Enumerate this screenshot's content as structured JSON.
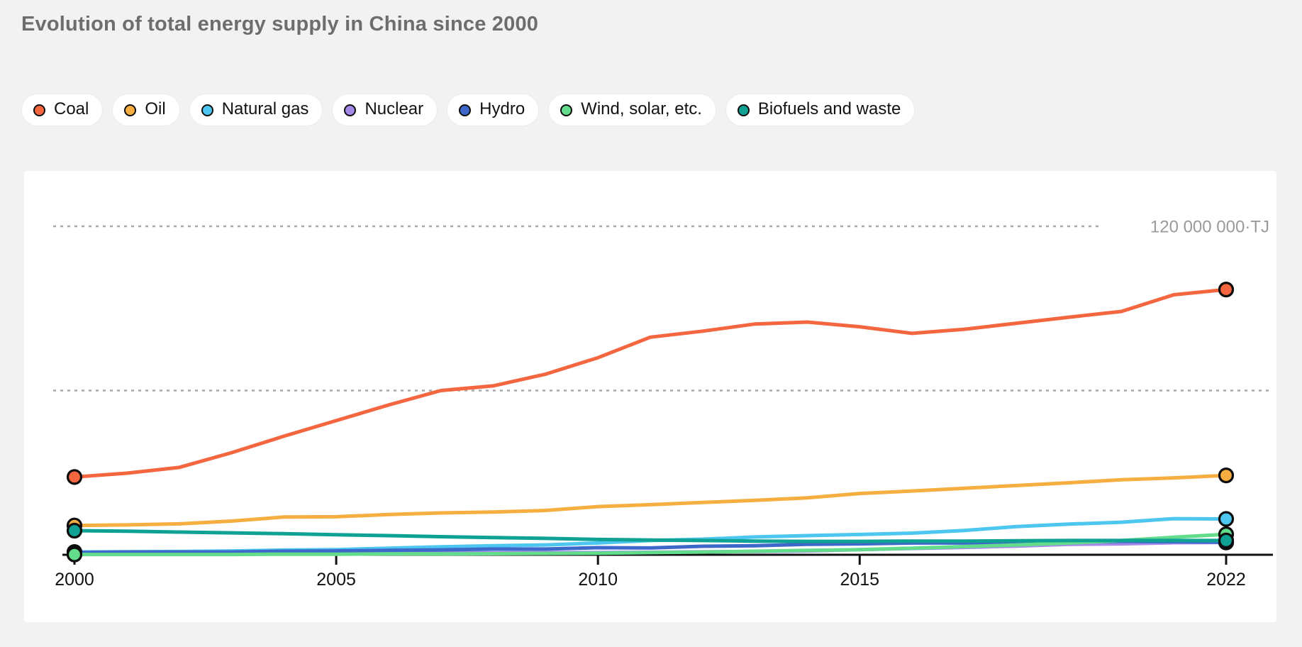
{
  "page": {
    "background_color": "#f2f2f2",
    "card_background_color": "#ffffff"
  },
  "header": {
    "title": "Evolution of total energy supply in China since 2000",
    "title_color": "#6d6d6d"
  },
  "legend": {
    "items": [
      "Coal",
      "Oil",
      "Natural gas",
      "Nuclear",
      "Hydro",
      "Wind, solar, etc.",
      "Biofuels and waste"
    ]
  },
  "chart_data": {
    "type": "line",
    "title": "Evolution of total energy supply in China since 2000",
    "xlabel": "",
    "ylabel": "Total energy supply",
    "unit": "TJ",
    "values_unit": "million TJ",
    "x": [
      2000,
      2001,
      2002,
      2003,
      2004,
      2005,
      2006,
      2007,
      2008,
      2009,
      2010,
      2011,
      2012,
      2013,
      2014,
      2015,
      2016,
      2017,
      2018,
      2019,
      2020,
      2021,
      2022
    ],
    "x_ticks": [
      2000,
      2005,
      2010,
      2015,
      2022
    ],
    "x_tick_labels": [
      "2000",
      "2005",
      "2010",
      "2015",
      "2022"
    ],
    "ylim": [
      0,
      132
    ],
    "grid": "horizontal dashed",
    "legend_position": "top",
    "gridlines": [
      {
        "value": 60,
        "label": ""
      },
      {
        "value": 120,
        "label": "120 000 000·TJ"
      }
    ],
    "series": [
      {
        "name": "Coal",
        "color": "#F4663F",
        "values": [
          28.4,
          29.8,
          31.9,
          37.3,
          43.3,
          49.0,
          54.7,
          60.0,
          61.7,
          66.0,
          72.0,
          79.5,
          81.7,
          84.3,
          85.0,
          83.3,
          80.9,
          82.4,
          84.6,
          86.8,
          88.9,
          95.0,
          96.9
        ]
      },
      {
        "name": "Oil",
        "color": "#F6AE41",
        "values": [
          10.7,
          10.9,
          11.3,
          12.3,
          13.8,
          13.9,
          14.7,
          15.3,
          15.6,
          16.2,
          17.6,
          18.3,
          19.1,
          19.9,
          20.8,
          22.4,
          23.3,
          24.3,
          25.3,
          26.3,
          27.4,
          28.1,
          29.0
        ]
      },
      {
        "name": "Natural gas",
        "color": "#4DC7F0",
        "values": [
          1.0,
          1.1,
          1.2,
          1.4,
          1.7,
          1.9,
          2.4,
          2.9,
          3.3,
          3.6,
          4.3,
          5.2,
          5.7,
          6.5,
          7.0,
          7.4,
          7.9,
          8.9,
          10.3,
          11.2,
          11.9,
          13.2,
          13.1
        ]
      },
      {
        "name": "Nuclear",
        "color": "#A489E8",
        "values": [
          0.2,
          0.2,
          0.3,
          0.5,
          0.6,
          0.6,
          0.6,
          0.7,
          0.7,
          0.8,
          0.8,
          0.9,
          1.1,
          1.2,
          1.4,
          1.9,
          2.3,
          2.7,
          3.2,
          3.8,
          4.0,
          4.4,
          4.5
        ]
      },
      {
        "name": "Hydro",
        "color": "#3D68C9",
        "values": [
          0.8,
          1.0,
          1.0,
          1.0,
          1.3,
          1.4,
          1.6,
          1.8,
          2.1,
          2.1,
          2.6,
          2.5,
          3.1,
          3.3,
          3.8,
          4.0,
          4.3,
          4.3,
          4.4,
          4.7,
          4.9,
          4.8,
          4.6
        ]
      },
      {
        "name": "Wind, solar, etc.",
        "color": "#63DC8C",
        "values": [
          0.1,
          0.1,
          0.1,
          0.1,
          0.2,
          0.2,
          0.3,
          0.3,
          0.4,
          0.5,
          0.6,
          0.8,
          1.0,
          1.3,
          1.6,
          1.9,
          2.4,
          3.0,
          3.6,
          4.3,
          5.2,
          6.4,
          7.5
        ]
      },
      {
        "name": "Biofuels and waste",
        "color": "#0FA294",
        "values": [
          8.8,
          8.6,
          8.3,
          8.0,
          7.7,
          7.3,
          7.0,
          6.6,
          6.3,
          6.0,
          5.6,
          5.4,
          5.2,
          5.0,
          4.9,
          4.9,
          5.0,
          5.0,
          5.1,
          5.2,
          5.2,
          5.2,
          5.2
        ]
      }
    ]
  }
}
